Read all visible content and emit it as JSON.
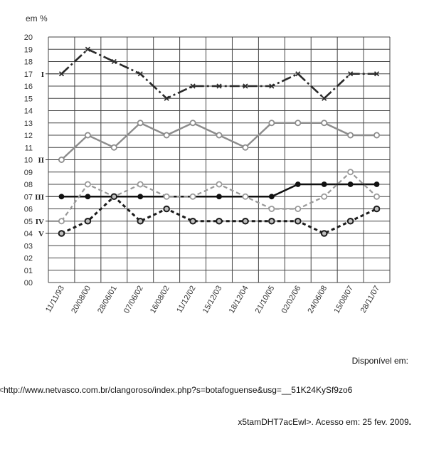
{
  "chart_data": {
    "type": "line",
    "ylabel": "em %",
    "ylim": [
      0,
      20
    ],
    "y_ticks": [
      "00",
      "01",
      "02",
      "03",
      "04",
      "05",
      "06",
      "07",
      "08",
      "09",
      "10",
      "11",
      "12",
      "13",
      "14",
      "15",
      "16",
      "17",
      "18",
      "19",
      "20"
    ],
    "categories": [
      "11/11/93",
      "20/08/00",
      "28/06/01",
      "07/06/02",
      "16/08/02",
      "11/12/02",
      "15/12/03",
      "18/12/04",
      "21/10/05",
      "02/02/06",
      "24/06/08",
      "15/08/07",
      "28/11/07"
    ],
    "grid": true,
    "series": [
      {
        "name": "I",
        "values": [
          17,
          19,
          18,
          17,
          15,
          16,
          16,
          16,
          16,
          17,
          15,
          17,
          17
        ]
      },
      {
        "name": "II",
        "values": [
          10,
          12,
          11,
          13,
          12,
          13,
          12,
          11,
          13,
          13,
          13,
          12,
          12
        ]
      },
      {
        "name": "III",
        "values": [
          7,
          7,
          7,
          7,
          7,
          7,
          7,
          7,
          7,
          8,
          8,
          8,
          8
        ]
      },
      {
        "name": "IV",
        "values": [
          5,
          8,
          7,
          8,
          7,
          7,
          8,
          7,
          6,
          6,
          7,
          9,
          7
        ]
      },
      {
        "name": "V",
        "values": [
          4,
          5,
          7,
          5,
          6,
          5,
          5,
          5,
          5,
          5,
          4,
          5,
          6
        ]
      }
    ]
  },
  "source": {
    "line1": "Disponível em:",
    "line2": "<http://www.netvasco.com.br/clangoroso/index.php?s=botafoguense&usg=__51K24KySf9zo6",
    "line3": "x5tamDHT7acEwl>. Acesso em: 25 fev. 2009",
    "end_mark": "."
  }
}
